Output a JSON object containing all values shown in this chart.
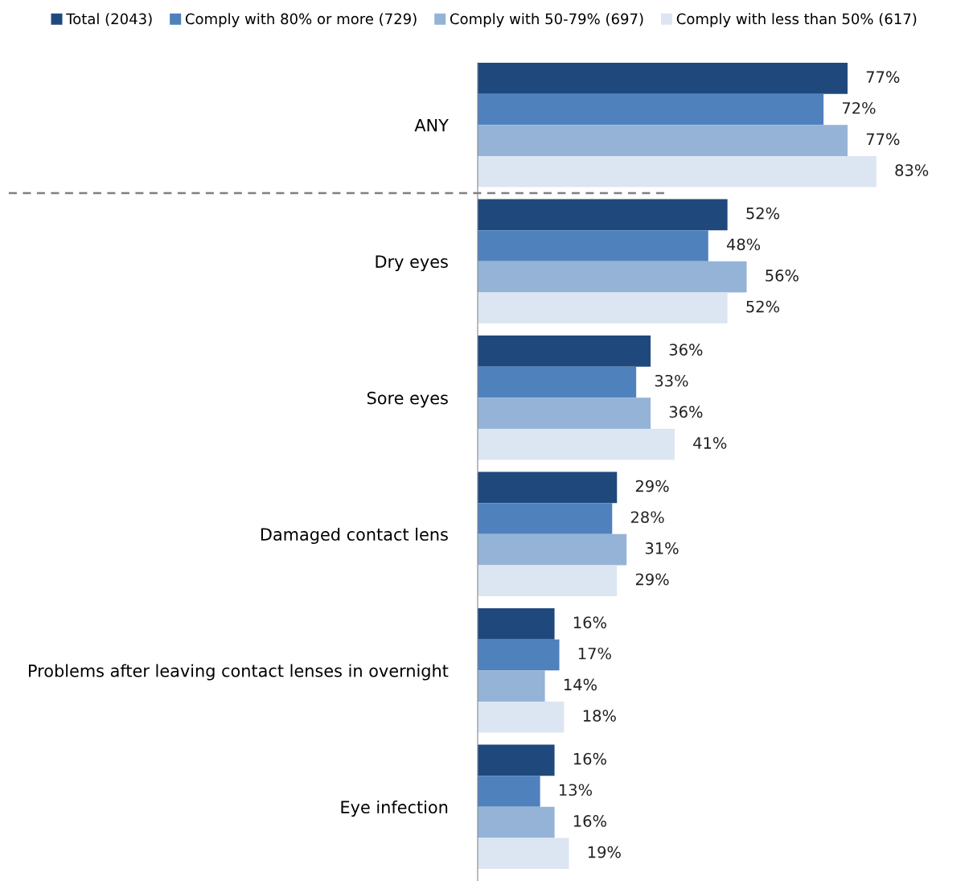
{
  "chart_data": {
    "type": "bar",
    "orientation": "horizontal",
    "categories": [
      "ANY",
      "Dry eyes",
      "Sore eyes",
      "Damaged contact lens",
      "Problems after leaving contact lenses in overnight",
      "Eye infection"
    ],
    "series": [
      {
        "name": "Total (2043)",
        "color": "#1f497d",
        "values": [
          77,
          52,
          36,
          29,
          16,
          16
        ],
        "value_labels": [
          "77%",
          "52%",
          "36%",
          "29%",
          "16%",
          "16%"
        ]
      },
      {
        "name": "Comply with 80% or more (729)",
        "color": "#4f81bd",
        "values": [
          72,
          48,
          33,
          28,
          17,
          13
        ],
        "value_labels": [
          "72%",
          "48%",
          "33%",
          "28%",
          "17%",
          "13%"
        ]
      },
      {
        "name": "Comply with 50-79% (697)",
        "color": "#95b3d7",
        "values": [
          77,
          56,
          36,
          31,
          14,
          16
        ],
        "value_labels": [
          "77%",
          "56%",
          "36%",
          "31%",
          "14%",
          "16%"
        ]
      },
      {
        "name": "Comply with less than 50% (617)",
        "color": "#dce6f2",
        "values": [
          83,
          52,
          41,
          29,
          18,
          19
        ],
        "value_labels": [
          "83%",
          "52%",
          "41%",
          "29%",
          "18%",
          "19%"
        ]
      }
    ],
    "legend": "top",
    "tick_labels": "y"
  }
}
